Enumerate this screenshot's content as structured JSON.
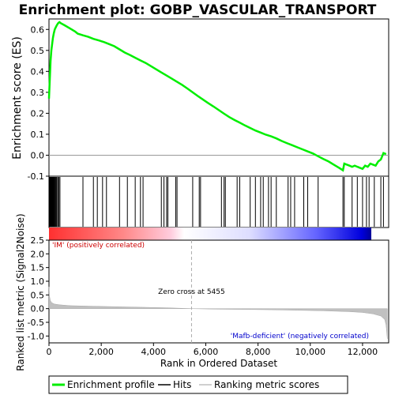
{
  "chart_data": {
    "type": "line",
    "title": "Enrichment plot: GOBP_VASCULAR_TRANSPORT",
    "panels": {
      "enrichment": {
        "ylabel": "Enrichment score (ES)",
        "ylim": [
          -0.1,
          0.65
        ],
        "yticks": [
          "-0.1",
          "0.0",
          "0.1",
          "0.2",
          "0.3",
          "0.4",
          "0.5",
          "0.6"
        ],
        "ytick_values": [
          -0.1,
          0.0,
          0.1,
          0.2,
          0.3,
          0.4,
          0.5,
          0.6
        ],
        "series": [
          {
            "name": "Enrichment profile",
            "color": "#00ee00",
            "x": [
              0,
              30,
              60,
              90,
              120,
              150,
              180,
              220,
              260,
              300,
              350,
              400,
              450,
              600,
              800,
              1000,
              1100,
              1300,
              1500,
              1700,
              1900,
              2100,
              2300,
              2500,
              2700,
              2900,
              3100,
              3300,
              3500,
              3700,
              3900,
              4100,
              4300,
              4500,
              4700,
              4900,
              5100,
              5300,
              5500,
              5700,
              5900,
              6100,
              6300,
              6500,
              6700,
              6900,
              7100,
              7300,
              7500,
              7700,
              7900,
              8100,
              8300,
              8500,
              8700,
              8900,
              9100,
              9300,
              9500,
              9700,
              9900,
              10100,
              10300,
              10500,
              10700,
              10900,
              11100,
              11250,
              11300,
              11400,
              11500,
              11600,
              11700,
              11800,
              11900,
              12000,
              12100,
              12200,
              12300,
              12400,
              12500,
              12600,
              12700,
              12800,
              12900
            ],
            "y": [
              0.27,
              0.36,
              0.45,
              0.5,
              0.53,
              0.56,
              0.58,
              0.6,
              0.61,
              0.62,
              0.63,
              0.635,
              0.63,
              0.62,
              0.605,
              0.59,
              0.58,
              0.572,
              0.565,
              0.555,
              0.548,
              0.54,
              0.53,
              0.52,
              0.505,
              0.49,
              0.478,
              0.465,
              0.452,
              0.44,
              0.425,
              0.41,
              0.395,
              0.38,
              0.365,
              0.35,
              0.335,
              0.318,
              0.3,
              0.282,
              0.265,
              0.248,
              0.232,
              0.215,
              0.198,
              0.182,
              0.168,
              0.155,
              0.142,
              0.13,
              0.118,
              0.108,
              0.098,
              0.09,
              0.08,
              0.068,
              0.058,
              0.048,
              0.038,
              0.028,
              0.018,
              0.008,
              -0.005,
              -0.018,
              -0.03,
              -0.045,
              -0.06,
              -0.072,
              -0.04,
              -0.045,
              -0.05,
              -0.055,
              -0.05,
              -0.055,
              -0.06,
              -0.065,
              -0.05,
              -0.055,
              -0.04,
              -0.045,
              -0.05,
              -0.03,
              -0.02,
              0.01,
              0.005
            ]
          }
        ]
      },
      "hits": {
        "name": "Hits",
        "positions": [
          10,
          25,
          40,
          55,
          70,
          85,
          100,
          115,
          130,
          150,
          170,
          190,
          210,
          240,
          270,
          300,
          340,
          380,
          420,
          1300,
          1700,
          1850,
          2050,
          2200,
          2700,
          3000,
          3300,
          3500,
          3600,
          4300,
          4400,
          4500,
          4550,
          4850,
          4900,
          5500,
          5750,
          5800,
          6600,
          6700,
          6750,
          7200,
          7300,
          7700,
          7900,
          8100,
          8200,
          8400,
          8500,
          8700,
          9150,
          9250,
          9400,
          9750,
          9900,
          10300,
          11250,
          11300,
          11600,
          11800,
          12000,
          12150,
          12250,
          12450,
          12700,
          12800
        ]
      },
      "ranking": {
        "name": "Ranking metric scores",
        "ylabel": "Ranked list metric (Signal2Noise)",
        "ylim": [
          -1.25,
          2.5
        ],
        "yticks": [
          "-1.0",
          "-0.5",
          "0.0",
          "0.5",
          "1.0",
          "1.5",
          "2.0",
          "2.5"
        ],
        "ytick_values": [
          -1.0,
          -0.5,
          0.0,
          0.5,
          1.0,
          1.5,
          2.0,
          2.5
        ],
        "x": [
          0,
          20,
          50,
          100,
          200,
          400,
          800,
          1500,
          2500,
          3500,
          4500,
          5455,
          6500,
          7500,
          8500,
          9500,
          10500,
          11500,
          12000,
          12400,
          12700,
          12850,
          12900,
          12950
        ],
        "y": [
          0.8,
          0.45,
          0.3,
          0.22,
          0.17,
          0.14,
          0.11,
          0.09,
          0.07,
          0.05,
          0.03,
          0.0,
          -0.02,
          -0.03,
          -0.04,
          -0.06,
          -0.08,
          -0.11,
          -0.14,
          -0.19,
          -0.27,
          -0.4,
          -0.6,
          -1.1
        ]
      }
    },
    "xlabel": "Rank in Ordered Dataset",
    "xlim": [
      0,
      13000
    ],
    "xticks": [
      "0",
      "2,000",
      "4,000",
      "6,000",
      "8,000",
      "10,000",
      "12,000"
    ],
    "xtick_values": [
      0,
      2000,
      4000,
      6000,
      8000,
      10000,
      12000
    ],
    "zero_cross": 5455,
    "annotations": {
      "zero_cross": "Zero cross at 5455",
      "positive": "'IM' (positively correlated)",
      "negative": "'Mafb-deficient' (negatively correlated)"
    },
    "legend": {
      "placement": "bottom",
      "entries": [
        "Enrichment profile",
        "Hits",
        "Ranking metric scores"
      ]
    },
    "colors": {
      "profile": "#00ee00",
      "hit": "#000000",
      "ranking_fill": "#c0c0c0",
      "positive": "#ff0000",
      "negative": "#0000ff"
    }
  }
}
